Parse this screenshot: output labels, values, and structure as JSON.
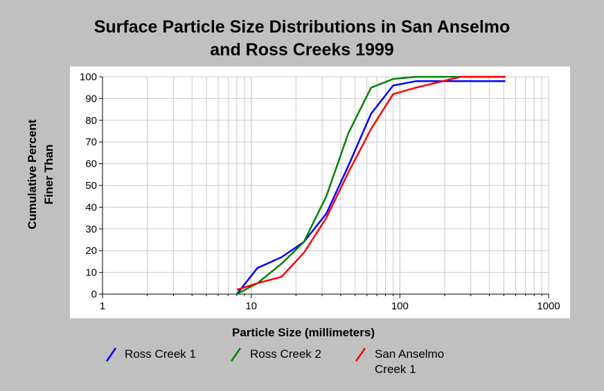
{
  "chart_data": {
    "type": "line",
    "title_line1": "Surface Particle Size Distributions in San Anselmo",
    "title_line2": "and Ross Creeks 1999",
    "xlabel": "Particle Size (millimeters)",
    "ylabel_line1": "Cumulative Percent",
    "ylabel_line2": "Finer Than",
    "xscale": "log",
    "xlim": [
      1,
      1000
    ],
    "ylim": [
      0,
      100
    ],
    "x_ticks": [
      "1",
      "10",
      "100",
      "1000"
    ],
    "y_ticks": [
      "0",
      "10",
      "20",
      "30",
      "40",
      "50",
      "60",
      "70",
      "80",
      "90",
      "100"
    ],
    "grid": true,
    "legend_position": "bottom",
    "series": [
      {
        "name": "Ross Creek 1",
        "color": "#0000ff",
        "x": [
          8,
          11,
          16,
          22.6,
          32,
          45,
          64,
          90,
          128,
          256,
          512
        ],
        "y": [
          0,
          12,
          17,
          24,
          37,
          59,
          83,
          96,
          98,
          98,
          98
        ]
      },
      {
        "name": "Ross Creek 2",
        "color": "#008000",
        "x": [
          8,
          11,
          16,
          22.6,
          32,
          45,
          64,
          90,
          128,
          256,
          512
        ],
        "y": [
          0,
          5,
          14,
          24,
          45,
          74,
          95,
          99,
          100,
          100,
          100
        ]
      },
      {
        "name": "San Anselmo Creek 1",
        "legend_line1": "San Anselmo",
        "legend_line2": "Creek 1",
        "color": "#ff0000",
        "x": [
          8,
          11,
          16,
          22.6,
          32,
          45,
          64,
          90,
          128,
          256,
          512
        ],
        "y": [
          2,
          5,
          8,
          19,
          35,
          56,
          76,
          92,
          95,
          100,
          100
        ]
      }
    ]
  }
}
